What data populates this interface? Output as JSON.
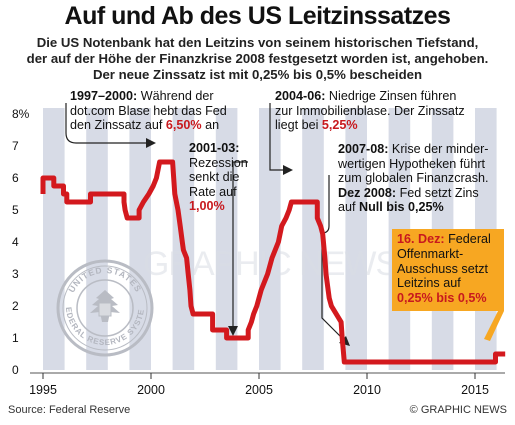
{
  "title": "Auf und Ab des US Leitzinssatzes",
  "subtitle": [
    "Die US Notenbank hat den Leitzins von seinem historischen Tiefstand,",
    "der auf der Höhe der Finanzkrise 2008 festgesetzt worden ist, angehoben.",
    "Der neue Zinssatz ist mit 0,25% bis 0,5% bescheiden"
  ],
  "colors": {
    "line": "#d3191e",
    "stripe": "#c9cfdd",
    "callout": "#f7a722",
    "highlight": "#c8191e"
  },
  "annotations": {
    "a1997": {
      "year": "1997–2000:",
      "l1": " Während der",
      "l2": "dot.com Blase hebt das Fed",
      "l3a": "den Zinssatz auf ",
      "l3b": "6,50%",
      "l3c": " an"
    },
    "a2001": {
      "year": "2001-03:",
      "l1": "Rezession",
      "l2": "senkt die",
      "l3": "Rate auf",
      "l4": "1,00%"
    },
    "a2004": {
      "year": "2004-06:",
      "l1": " Niedrige Zinsen führen",
      "l2": "zur Immobilienblase. Der Zinssatz",
      "l3a": "liegt bei ",
      "l3b": "5,25%"
    },
    "a2007": {
      "year": "2007-08:",
      "l1": " Krise der minder-",
      "l2": "wertigen Hypotheken führt",
      "l3": "zum globalen Finanzcrash.",
      "l4a": "Dez 2008:",
      "l4b": " Fed setzt Zins",
      "l5a": "auf ",
      "l5b": "Null bis 0,25%"
    },
    "a2015": {
      "date": "16. Dez:",
      "l1": " Federal",
      "l2": "Offenmarkt-",
      "l3": "Ausschuss setzt",
      "l4": "Leitzins auf",
      "l5": "0,25% bis 0,5%"
    }
  },
  "seal": {
    "top": "UNITED STATES",
    "bottom": "FEDERAL RESERVE SYSTEM"
  },
  "watermark": "GRAPHIC NEWS",
  "source": "Source: Federal Reserve",
  "credit": "© GRAPHIC NEWS",
  "chart_data": {
    "type": "line",
    "title": "Auf und Ab des US Leitzinssatzes",
    "xlabel": "",
    "ylabel": "",
    "xlim": [
      1994.5,
      2016.8
    ],
    "ylim": [
      0,
      8
    ],
    "y_ticks": [
      0,
      1,
      2,
      3,
      4,
      5,
      6,
      7,
      8
    ],
    "y_tick_labels": [
      "0",
      "1",
      "2",
      "3",
      "4",
      "5",
      "6",
      "7",
      "8%"
    ],
    "x_ticks": [
      1995,
      2000,
      2005,
      2010,
      2015
    ],
    "x_tick_labels": [
      "1995",
      "2000",
      "2005",
      "2010",
      "2015"
    ],
    "grid": "alternating-year-stripes",
    "series": [
      {
        "name": "",
        "points": [
          [
            1995.0,
            5.5
          ],
          [
            1995.0,
            6.0
          ],
          [
            1995.5,
            6.0
          ],
          [
            1995.5,
            5.75
          ],
          [
            1995.95,
            5.75
          ],
          [
            1995.95,
            5.5
          ],
          [
            1996.1,
            5.5
          ],
          [
            1996.1,
            5.25
          ],
          [
            1997.2,
            5.25
          ],
          [
            1997.2,
            5.5
          ],
          [
            1998.75,
            5.5
          ],
          [
            1998.75,
            5.25
          ],
          [
            1998.8,
            5.0
          ],
          [
            1998.9,
            4.75
          ],
          [
            1999.45,
            4.75
          ],
          [
            1999.45,
            5.0
          ],
          [
            1999.65,
            5.25
          ],
          [
            1999.9,
            5.5
          ],
          [
            2000.1,
            5.75
          ],
          [
            2000.25,
            6.0
          ],
          [
            2000.4,
            6.5
          ],
          [
            2001.0,
            6.5
          ],
          [
            2001.05,
            6.0
          ],
          [
            2001.1,
            5.5
          ],
          [
            2001.25,
            5.0
          ],
          [
            2001.35,
            4.5
          ],
          [
            2001.45,
            4.0
          ],
          [
            2001.5,
            3.75
          ],
          [
            2001.65,
            3.5
          ],
          [
            2001.72,
            3.0
          ],
          [
            2001.8,
            2.5
          ],
          [
            2001.85,
            2.0
          ],
          [
            2001.95,
            1.75
          ],
          [
            2002.85,
            1.75
          ],
          [
            2002.85,
            1.25
          ],
          [
            2003.5,
            1.25
          ],
          [
            2003.5,
            1.0
          ],
          [
            2004.5,
            1.0
          ],
          [
            2004.5,
            1.25
          ],
          [
            2004.65,
            1.5
          ],
          [
            2004.75,
            1.75
          ],
          [
            2004.9,
            2.0
          ],
          [
            2005.0,
            2.25
          ],
          [
            2005.1,
            2.5
          ],
          [
            2005.25,
            2.75
          ],
          [
            2005.4,
            3.0
          ],
          [
            2005.5,
            3.25
          ],
          [
            2005.6,
            3.5
          ],
          [
            2005.75,
            3.75
          ],
          [
            2005.9,
            4.0
          ],
          [
            2006.05,
            4.5
          ],
          [
            2006.25,
            4.75
          ],
          [
            2006.4,
            5.0
          ],
          [
            2006.5,
            5.25
          ],
          [
            2007.7,
            5.25
          ],
          [
            2007.7,
            4.75
          ],
          [
            2007.85,
            4.5
          ],
          [
            2007.95,
            4.25
          ],
          [
            2008.05,
            3.5
          ],
          [
            2008.1,
            3.0
          ],
          [
            2008.25,
            2.25
          ],
          [
            2008.35,
            2.0
          ],
          [
            2008.8,
            1.5
          ],
          [
            2008.85,
            1.0
          ],
          [
            2008.95,
            0.25
          ],
          [
            2015.95,
            0.25
          ],
          [
            2015.95,
            0.5
          ],
          [
            2016.4,
            0.5
          ]
        ]
      }
    ]
  }
}
